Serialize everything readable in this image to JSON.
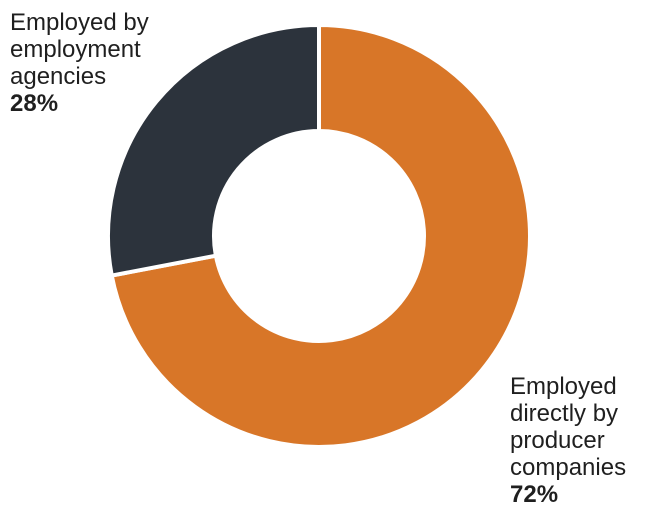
{
  "chart_data": {
    "type": "pie",
    "donut": true,
    "title": "",
    "slices": [
      {
        "label": "Employed directly by producer companies",
        "value": 72,
        "value_label": "72%",
        "color": "#d87628"
      },
      {
        "label": "Employed by employment agencies",
        "value": 28,
        "value_label": "28%",
        "color": "#2c333c"
      }
    ],
    "legend": "none"
  }
}
